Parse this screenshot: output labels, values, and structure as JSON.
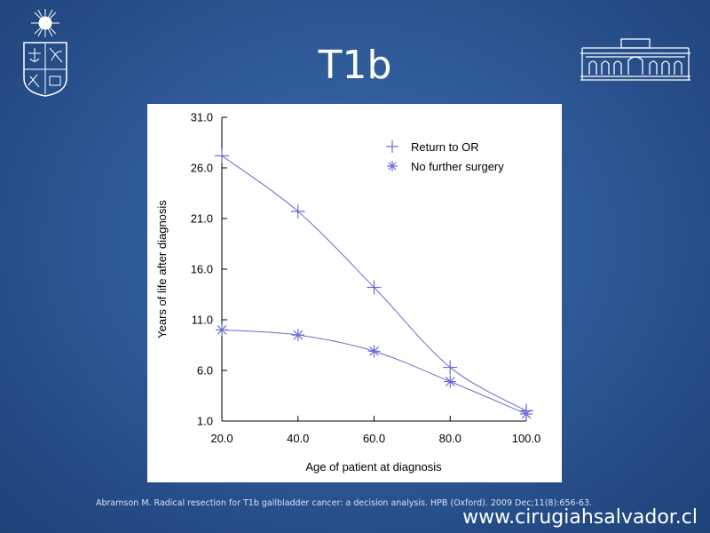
{
  "slide": {
    "title": "T1b",
    "citation": "Abramson M. Radical resection for T1b gallbladder cancer: a decision analysis. HPB (Oxford). 2009 Dec;11(8):656-63.",
    "website": "www.cirugiahsalvador.cl",
    "logos": [
      "university-seal-icon",
      "hospital-building-icon"
    ]
  },
  "colors": {
    "background": "#2f5a98",
    "series": "#6a6ad2",
    "axis": "#000000"
  },
  "chart_data": {
    "type": "line",
    "xlabel": "Age of patient at diagnosis",
    "ylabel": "Years of life after diagnosis",
    "xlim": [
      20,
      100
    ],
    "ylim": [
      1,
      31
    ],
    "xticks": [
      "20.0",
      "40.0",
      "60.0",
      "80.0",
      "100.0"
    ],
    "yticks": [
      "1.0",
      "6.0",
      "11.0",
      "16.0",
      "21.0",
      "26.0",
      "31.0"
    ],
    "x": [
      20,
      40,
      60,
      80,
      100
    ],
    "series": [
      {
        "name": "Return to OR",
        "marker": "plus",
        "values": [
          27.2,
          21.7,
          14.2,
          6.3,
          2.0
        ]
      },
      {
        "name": "No further surgery",
        "marker": "asterisk",
        "values": [
          10.0,
          9.5,
          7.9,
          4.9,
          1.7
        ]
      }
    ],
    "legend": "top-right",
    "grid": false
  }
}
